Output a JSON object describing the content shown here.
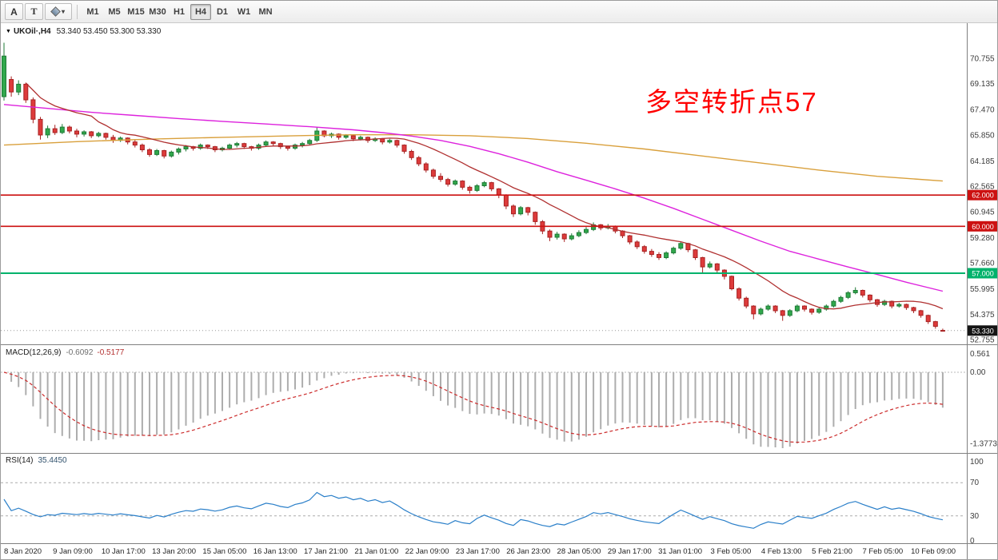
{
  "toolbar": {
    "text_tool": "A",
    "label_tool": "T",
    "timeframes": [
      "M1",
      "M5",
      "M15",
      "M30",
      "H1",
      "H4",
      "D1",
      "W1",
      "MN"
    ],
    "active_timeframe": "H4"
  },
  "icons": {
    "title_caret": "▼",
    "tool_caret": "▾"
  },
  "chart": {
    "title_symbol": "UKOil·,H4",
    "title_ohlc": "53.340 53.450 53.300 53.330",
    "annotation": {
      "text": "多空转折点57",
      "color": "#FF0000"
    },
    "price_axis_labels": [
      "70.755",
      "69.135",
      "67.470",
      "65.850",
      "64.185",
      "62.565",
      "60.945",
      "59.280",
      "57.660",
      "55.995",
      "54.375",
      "52.755"
    ],
    "hlines": [
      {
        "label": "62.000",
        "color": "#CC1111",
        "width": 1.6
      },
      {
        "label": "60.000",
        "color": "#CC1111",
        "width": 1.6
      },
      {
        "label": "57.000",
        "color": "#00B26B",
        "width": 2
      }
    ],
    "current_price": {
      "label": "53.330"
    },
    "time_labels": [
      "8 Jan 2020",
      "9 Jan 09:00",
      "10 Jan 17:00",
      "13 Jan 20:00",
      "15 Jan 05:00",
      "16 Jan 13:00",
      "17 Jan 21:00",
      "21 Jan 01:00",
      "22 Jan 09:00",
      "23 Jan 17:00",
      "26 Jan 23:00",
      "28 Jan 05:00",
      "29 Jan 17:00",
      "31 Jan 01:00",
      "3 Feb 05:00",
      "4 Feb 13:00",
      "5 Feb 21:00",
      "7 Feb 05:00",
      "10 Feb 09:00"
    ],
    "ma_medium_points": [
      [
        0,
        67.8
      ],
      [
        6,
        67.55
      ],
      [
        12,
        67.3
      ],
      [
        18,
        67.1
      ],
      [
        24,
        66.9
      ],
      [
        30,
        66.72
      ],
      [
        36,
        66.55
      ],
      [
        42,
        66.38
      ],
      [
        48,
        66.18
      ],
      [
        52,
        66.0
      ],
      [
        56,
        65.78
      ],
      [
        60,
        65.5
      ],
      [
        64,
        65.12
      ],
      [
        68,
        64.65
      ],
      [
        72,
        64.1
      ],
      [
        76,
        63.5
      ],
      [
        80,
        62.95
      ],
      [
        84,
        62.4
      ],
      [
        88,
        61.8
      ],
      [
        92,
        61.15
      ],
      [
        96,
        60.45
      ],
      [
        100,
        59.75
      ],
      [
        104,
        59.05
      ],
      [
        108,
        58.4
      ],
      [
        112,
        57.9
      ],
      [
        116,
        57.4
      ],
      [
        120,
        56.92
      ],
      [
        124,
        56.42
      ],
      [
        129,
        55.85
      ]
    ],
    "ma_slow_points": [
      [
        0,
        65.2
      ],
      [
        10,
        65.42
      ],
      [
        20,
        65.58
      ],
      [
        30,
        65.7
      ],
      [
        40,
        65.8
      ],
      [
        48,
        65.86
      ],
      [
        56,
        65.86
      ],
      [
        64,
        65.8
      ],
      [
        72,
        65.62
      ],
      [
        80,
        65.32
      ],
      [
        88,
        64.95
      ],
      [
        96,
        64.5
      ],
      [
        104,
        64.05
      ],
      [
        112,
        63.6
      ],
      [
        120,
        63.2
      ],
      [
        129,
        62.9
      ]
    ],
    "candles": [
      [
        68.3,
        71.75,
        68.05,
        70.9
      ],
      [
        69.4,
        69.6,
        68.3,
        68.6
      ],
      [
        68.6,
        69.35,
        68.4,
        69.1
      ],
      [
        69.1,
        69.2,
        67.9,
        68.1
      ],
      [
        68.1,
        68.25,
        66.6,
        66.85
      ],
      [
        66.85,
        67.0,
        65.55,
        65.85
      ],
      [
        65.85,
        66.45,
        65.65,
        66.25
      ],
      [
        66.25,
        66.5,
        65.85,
        66.0
      ],
      [
        66.0,
        66.55,
        65.9,
        66.35
      ],
      [
        66.35,
        66.45,
        65.95,
        66.1
      ],
      [
        66.1,
        66.25,
        65.7,
        65.9
      ],
      [
        65.9,
        66.15,
        65.75,
        66.05
      ],
      [
        66.05,
        66.1,
        65.65,
        65.8
      ],
      [
        65.8,
        66.05,
        65.7,
        65.95
      ],
      [
        65.95,
        66.0,
        65.55,
        65.7
      ],
      [
        65.7,
        65.85,
        65.35,
        65.5
      ],
      [
        65.5,
        65.75,
        65.4,
        65.65
      ],
      [
        65.65,
        65.7,
        65.25,
        65.4
      ],
      [
        65.4,
        65.55,
        65.05,
        65.2
      ],
      [
        65.2,
        65.3,
        64.75,
        64.9
      ],
      [
        64.9,
        65.0,
        64.45,
        64.6
      ],
      [
        64.6,
        64.95,
        64.5,
        64.85
      ],
      [
        64.85,
        64.9,
        64.35,
        64.5
      ],
      [
        64.5,
        64.85,
        64.4,
        64.75
      ],
      [
        64.75,
        65.05,
        64.6,
        64.95
      ],
      [
        64.95,
        65.2,
        64.8,
        65.1
      ],
      [
        65.1,
        65.15,
        64.85,
        65.0
      ],
      [
        65.0,
        65.3,
        64.9,
        65.2
      ],
      [
        65.2,
        65.25,
        64.95,
        65.1
      ],
      [
        65.1,
        65.15,
        64.75,
        64.9
      ],
      [
        64.9,
        65.1,
        64.8,
        65.0
      ],
      [
        65.0,
        65.3,
        64.9,
        65.2
      ],
      [
        65.2,
        65.4,
        65.05,
        65.3
      ],
      [
        65.3,
        65.35,
        64.95,
        65.1
      ],
      [
        65.1,
        65.15,
        64.85,
        65.0
      ],
      [
        65.0,
        65.3,
        64.9,
        65.2
      ],
      [
        65.2,
        65.5,
        65.1,
        65.4
      ],
      [
        65.4,
        65.45,
        65.15,
        65.3
      ],
      [
        65.3,
        65.35,
        64.95,
        65.1
      ],
      [
        65.1,
        65.15,
        64.85,
        65.0
      ],
      [
        65.0,
        65.3,
        64.9,
        65.2
      ],
      [
        65.2,
        65.4,
        65.05,
        65.3
      ],
      [
        65.3,
        65.6,
        65.2,
        65.5
      ],
      [
        65.5,
        66.35,
        65.4,
        66.1
      ],
      [
        66.1,
        66.15,
        65.7,
        65.8
      ],
      [
        65.8,
        66.0,
        65.65,
        65.9
      ],
      [
        65.9,
        65.95,
        65.55,
        65.7
      ],
      [
        65.7,
        65.9,
        65.6,
        65.8
      ],
      [
        65.8,
        65.85,
        65.45,
        65.6
      ],
      [
        65.6,
        65.8,
        65.5,
        65.7
      ],
      [
        65.7,
        65.75,
        65.35,
        65.5
      ],
      [
        65.5,
        65.7,
        65.4,
        65.6
      ],
      [
        65.6,
        65.65,
        65.25,
        65.4
      ],
      [
        65.4,
        65.6,
        65.3,
        65.5
      ],
      [
        65.5,
        65.55,
        65.05,
        65.2
      ],
      [
        65.2,
        65.25,
        64.65,
        64.8
      ],
      [
        64.8,
        64.9,
        64.25,
        64.4
      ],
      [
        64.4,
        64.5,
        63.85,
        64.0
      ],
      [
        64.0,
        64.1,
        63.45,
        63.6
      ],
      [
        63.6,
        63.7,
        63.05,
        63.2
      ],
      [
        63.2,
        63.4,
        62.85,
        63.0
      ],
      [
        63.0,
        63.1,
        62.55,
        62.7
      ],
      [
        62.7,
        63.0,
        62.6,
        62.9
      ],
      [
        62.9,
        62.95,
        62.35,
        62.5
      ],
      [
        62.5,
        62.6,
        62.1,
        62.3
      ],
      [
        62.3,
        62.7,
        62.2,
        62.6
      ],
      [
        62.6,
        62.9,
        62.5,
        62.8
      ],
      [
        62.8,
        62.85,
        62.25,
        62.4
      ],
      [
        62.4,
        62.45,
        61.8,
        62.0
      ],
      [
        62.0,
        62.05,
        61.1,
        61.3
      ],
      [
        61.3,
        61.4,
        60.6,
        60.8
      ],
      [
        60.8,
        61.3,
        60.7,
        61.2
      ],
      [
        61.2,
        61.25,
        60.7,
        60.9
      ],
      [
        60.9,
        60.95,
        60.1,
        60.3
      ],
      [
        60.3,
        60.4,
        59.5,
        59.7
      ],
      [
        59.7,
        59.8,
        59.05,
        59.3
      ],
      [
        59.3,
        59.65,
        59.15,
        59.5
      ],
      [
        59.5,
        59.55,
        59.0,
        59.2
      ],
      [
        59.2,
        59.55,
        59.1,
        59.4
      ],
      [
        59.4,
        59.75,
        59.3,
        59.6
      ],
      [
        59.6,
        59.95,
        59.5,
        59.8
      ],
      [
        59.8,
        60.25,
        59.7,
        60.1
      ],
      [
        60.1,
        60.15,
        59.75,
        59.9
      ],
      [
        59.9,
        60.15,
        59.8,
        60.0
      ],
      [
        60.0,
        60.05,
        59.55,
        59.7
      ],
      [
        59.7,
        59.75,
        59.25,
        59.4
      ],
      [
        59.4,
        59.45,
        58.85,
        59.0
      ],
      [
        59.0,
        59.1,
        58.55,
        58.7
      ],
      [
        58.7,
        58.8,
        58.25,
        58.4
      ],
      [
        58.4,
        58.55,
        58.05,
        58.2
      ],
      [
        58.2,
        58.35,
        57.85,
        58.0
      ],
      [
        58.0,
        58.4,
        57.9,
        58.3
      ],
      [
        58.3,
        58.7,
        58.2,
        58.6
      ],
      [
        58.6,
        59.0,
        58.5,
        58.9
      ],
      [
        58.9,
        58.95,
        58.35,
        58.5
      ],
      [
        58.5,
        58.55,
        57.85,
        58.0
      ],
      [
        58.0,
        58.05,
        57.0,
        57.4
      ],
      [
        57.4,
        57.75,
        57.3,
        57.6
      ],
      [
        57.6,
        57.65,
        57.05,
        57.2
      ],
      [
        57.2,
        57.25,
        56.6,
        56.8
      ],
      [
        56.8,
        56.85,
        55.9,
        56.0
      ],
      [
        56.0,
        56.1,
        55.25,
        55.4
      ],
      [
        55.4,
        55.5,
        54.75,
        54.9
      ],
      [
        54.9,
        54.95,
        54.05,
        54.4
      ],
      [
        54.4,
        54.8,
        54.3,
        54.7
      ],
      [
        54.7,
        55.0,
        54.6,
        54.9
      ],
      [
        54.9,
        54.95,
        54.45,
        54.6
      ],
      [
        54.6,
        54.65,
        53.95,
        54.3
      ],
      [
        54.3,
        54.7,
        54.2,
        54.6
      ],
      [
        54.6,
        55.0,
        54.5,
        54.9
      ],
      [
        54.9,
        54.95,
        54.55,
        54.7
      ],
      [
        54.7,
        54.75,
        54.35,
        54.5
      ],
      [
        54.5,
        54.8,
        54.4,
        54.7
      ],
      [
        54.7,
        55.0,
        54.6,
        54.9
      ],
      [
        54.9,
        55.3,
        54.8,
        55.2
      ],
      [
        55.2,
        55.55,
        55.1,
        55.45
      ],
      [
        55.45,
        55.85,
        55.35,
        55.75
      ],
      [
        55.75,
        56.1,
        55.65,
        55.9
      ],
      [
        55.9,
        55.95,
        55.45,
        55.6
      ],
      [
        55.6,
        55.65,
        55.15,
        55.3
      ],
      [
        55.3,
        55.35,
        54.85,
        55.0
      ],
      [
        55.0,
        55.3,
        54.9,
        55.2
      ],
      [
        55.2,
        55.25,
        54.75,
        54.9
      ],
      [
        54.9,
        55.1,
        54.8,
        55.0
      ],
      [
        55.0,
        55.05,
        54.65,
        54.8
      ],
      [
        54.8,
        54.85,
        54.45,
        54.6
      ],
      [
        54.6,
        54.65,
        54.15,
        54.3
      ],
      [
        54.3,
        54.35,
        53.75,
        53.9
      ],
      [
        53.9,
        53.95,
        53.45,
        53.6
      ],
      [
        53.34,
        53.45,
        53.3,
        53.33
      ]
    ]
  },
  "macd": {
    "label": "MACD(12,26,9)",
    "value_main": "-0.6092",
    "value_signal": "-0.5177",
    "axis_labels": [
      "0.561",
      "0.00",
      "-1.3773"
    ],
    "fast": 12,
    "slow": 26,
    "signal_period": 9
  },
  "rsi": {
    "label": "RSI(14)",
    "value": "35.4450",
    "period": 14,
    "levels": [
      {
        "label": "100",
        "dashed": false
      },
      {
        "label": "70",
        "dashed": true
      },
      {
        "label": "30",
        "dashed": true
      },
      {
        "label": "0",
        "dashed": false
      }
    ]
  },
  "colors": {
    "bull": "#31A84C",
    "bull_border": "#1E7A36",
    "bear": "#DD3B3B",
    "bear_border": "#A82222",
    "ma_fast": "#B03030",
    "ma_medium": "#DD22DD",
    "ma_slow": "#D9A03C",
    "price_line": "#9A9A9A",
    "price_tag_bg": "#141414",
    "macd_hist": "#ADADAD",
    "macd_signal": "#CC2B2B",
    "rsi_line": "#2A7FC9",
    "panel_border": "#808080",
    "grid_dash": "#ABABAB",
    "axis_text": "#3C3C3C"
  }
}
